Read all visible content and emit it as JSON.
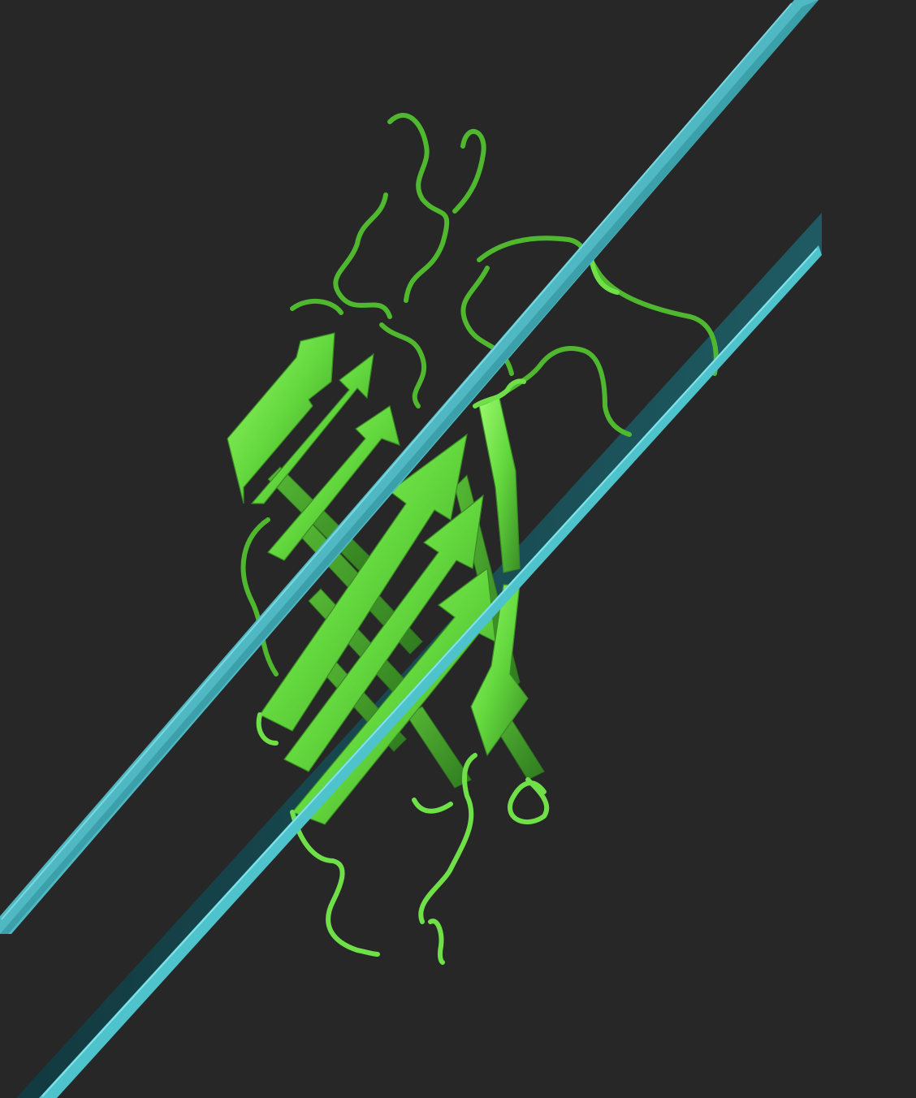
{
  "scene": {
    "subject": "protein-beta-barrel-in-membrane",
    "colors": {
      "background": "#272727",
      "protein_light": "#8ef55e",
      "protein_mid": "#5fd33c",
      "protein_dark": "#3f9a2a",
      "coil": "#6fe048",
      "membrane_light": "#4fc3cc",
      "membrane_dark": "#1f5a62"
    },
    "representation": "cartoon",
    "membrane": "two-planes"
  }
}
